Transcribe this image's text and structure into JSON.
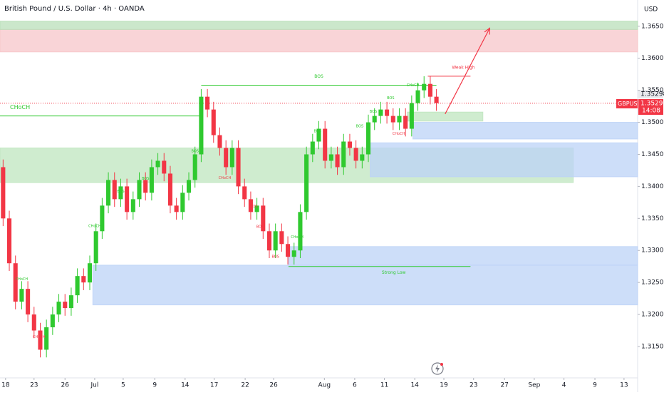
{
  "header": {
    "title": "British Pound / U.S. Dollar · 4h · OANDA",
    "currency": "USD"
  },
  "price_tags": {
    "last": "1.35298",
    "symbol": "GBPUSD",
    "current": "1.35298",
    "countdown": "14:08"
  },
  "chart_data": {
    "type": "candlestick",
    "up_color": "#2fc92f",
    "down_color": "#f23645",
    "grid": false,
    "xlim": [
      -0.5,
      102.5
    ],
    "ylim": [
      1.3101,
      1.3691
    ],
    "open": [
      1.343,
      1.335,
      1.328,
      1.322,
      1.324,
      1.32,
      1.3175,
      1.3145,
      1.318,
      1.32,
      1.322,
      1.321,
      1.323,
      1.326,
      1.325,
      1.328,
      1.333,
      1.337,
      1.341,
      1.338,
      1.34,
      1.336,
      1.338,
      1.341,
      1.339,
      1.343,
      1.344,
      1.342,
      1.337,
      1.336,
      1.339,
      1.341,
      1.345,
      1.354,
      1.352,
      1.348,
      1.346,
      1.343,
      1.346,
      1.34,
      1.338,
      1.336,
      1.337,
      1.333,
      1.33,
      1.333,
      1.331,
      1.329,
      1.33,
      1.336,
      1.345,
      1.347,
      1.349,
      1.344,
      1.345,
      1.343,
      1.347,
      1.346,
      1.344,
      1.345,
      1.35,
      1.351,
      1.352,
      1.351,
      1.35,
      1.351,
      1.349,
      1.353,
      1.355,
      1.356,
      1.354
    ],
    "high": [
      1.3442,
      1.3362,
      1.3292,
      1.3252,
      1.3252,
      1.3212,
      1.3187,
      1.3192,
      1.3212,
      1.3232,
      1.3232,
      1.3242,
      1.3272,
      1.3272,
      1.3292,
      1.3342,
      1.3382,
      1.3422,
      1.3422,
      1.3412,
      1.3412,
      1.3392,
      1.3422,
      1.3422,
      1.3442,
      1.3452,
      1.3452,
      1.3432,
      1.3382,
      1.3402,
      1.3422,
      1.3462,
      1.3552,
      1.3552,
      1.3532,
      1.3492,
      1.3472,
      1.3472,
      1.3472,
      1.3412,
      1.3392,
      1.3382,
      1.3382,
      1.3342,
      1.3342,
      1.3342,
      1.3322,
      1.3312,
      1.3372,
      1.3462,
      1.3482,
      1.3502,
      1.3502,
      1.3462,
      1.3462,
      1.3482,
      1.3482,
      1.3472,
      1.3462,
      1.3512,
      1.3522,
      1.3532,
      1.3532,
      1.3522,
      1.3522,
      1.3522,
      1.3542,
      1.3562,
      1.3572,
      1.3572,
      1.3552
    ],
    "low": [
      1.3338,
      1.3268,
      1.3208,
      1.3208,
      1.3188,
      1.3163,
      1.3133,
      1.3133,
      1.3168,
      1.3188,
      1.3198,
      1.3198,
      1.3218,
      1.3238,
      1.3238,
      1.3268,
      1.3318,
      1.3358,
      1.3368,
      1.3368,
      1.3348,
      1.3348,
      1.3368,
      1.3378,
      1.3378,
      1.3418,
      1.3408,
      1.3358,
      1.3348,
      1.3348,
      1.3378,
      1.3398,
      1.3438,
      1.3508,
      1.3468,
      1.3448,
      1.3418,
      1.3418,
      1.3388,
      1.3368,
      1.3348,
      1.3348,
      1.3318,
      1.3288,
      1.3288,
      1.3298,
      1.3278,
      1.3278,
      1.3288,
      1.3348,
      1.3438,
      1.3458,
      1.3428,
      1.3428,
      1.3418,
      1.3418,
      1.3448,
      1.3428,
      1.3428,
      1.3438,
      1.3488,
      1.3498,
      1.3498,
      1.3488,
      1.3488,
      1.3478,
      1.3478,
      1.3518,
      1.3538,
      1.3528,
      1.3518
    ],
    "close": [
      1.335,
      1.328,
      1.322,
      1.324,
      1.32,
      1.3175,
      1.3145,
      1.318,
      1.32,
      1.322,
      1.321,
      1.323,
      1.326,
      1.325,
      1.328,
      1.333,
      1.337,
      1.341,
      1.338,
      1.34,
      1.336,
      1.338,
      1.341,
      1.339,
      1.343,
      1.344,
      1.342,
      1.337,
      1.336,
      1.339,
      1.341,
      1.345,
      1.354,
      1.352,
      1.348,
      1.346,
      1.343,
      1.346,
      1.34,
      1.338,
      1.336,
      1.337,
      1.333,
      1.33,
      1.333,
      1.331,
      1.329,
      1.33,
      1.336,
      1.345,
      1.347,
      1.349,
      1.344,
      1.345,
      1.343,
      1.347,
      1.346,
      1.344,
      1.345,
      1.35,
      1.351,
      1.352,
      1.351,
      1.35,
      1.351,
      1.349,
      1.353,
      1.355,
      1.356,
      1.354,
      1.353
    ],
    "yticks": [
      {
        "value": 1.315,
        "label": "1.31500"
      },
      {
        "value": 1.32,
        "label": "1.32000"
      },
      {
        "value": 1.325,
        "label": "1.32500"
      },
      {
        "value": 1.33,
        "label": "1.33000"
      },
      {
        "value": 1.335,
        "label": "1.33500"
      },
      {
        "value": 1.34,
        "label": "1.34000"
      },
      {
        "value": 1.345,
        "label": "1.34500"
      },
      {
        "value": 1.35,
        "label": "1.35000"
      },
      {
        "value": 1.355,
        "label": "1.35500"
      },
      {
        "value": 1.36,
        "label": "1.36000"
      },
      {
        "value": 1.365,
        "label": "1.36500"
      }
    ],
    "xticks": [
      {
        "value": 0.4,
        "label": "18"
      },
      {
        "value": 5,
        "label": "23"
      },
      {
        "value": 10,
        "label": "26"
      },
      {
        "value": 14.8,
        "label": "Jul"
      },
      {
        "value": 19.4,
        "label": "5"
      },
      {
        "value": 24.5,
        "label": "9"
      },
      {
        "value": 29.4,
        "label": "14"
      },
      {
        "value": 34.1,
        "label": "17"
      },
      {
        "value": 39.1,
        "label": "22"
      },
      {
        "value": 43.7,
        "label": "26"
      },
      {
        "value": 51.9,
        "label": "Aug"
      },
      {
        "value": 56.8,
        "label": "6"
      },
      {
        "value": 61.6,
        "label": "11"
      },
      {
        "value": 66.5,
        "label": "14"
      },
      {
        "value": 71.2,
        "label": "19"
      },
      {
        "value": 76,
        "label": "23"
      },
      {
        "value": 81,
        "label": "27"
      },
      {
        "value": 85.8,
        "label": "Sep"
      },
      {
        "value": 90.6,
        "label": "4"
      },
      {
        "value": 95.6,
        "label": "9"
      },
      {
        "value": 100.3,
        "label": "13"
      }
    ],
    "zones": [
      {
        "x": [
          -0.5,
          102.5
        ],
        "y": [
          1.361,
          1.3645
        ],
        "color": "#f7c5c9"
      },
      {
        "x": [
          -0.5,
          102.5
        ],
        "y": [
          1.3645,
          1.3658
        ],
        "color": "#b9dfb9"
      },
      {
        "x": [
          -0.5,
          92.1
        ],
        "y": [
          1.3406,
          1.346
        ],
        "color": "#bfe5bf"
      },
      {
        "x": [
          59.3,
          102.5
        ],
        "y": [
          1.3415,
          1.3468
        ],
        "color": "#bcd3f7"
      },
      {
        "x": [
          66.2,
          102.5
        ],
        "y": [
          1.3474,
          1.35
        ],
        "color": "#bcd3f7"
      },
      {
        "x": [
          65.3,
          77.5
        ],
        "y": [
          1.3502,
          1.3516
        ],
        "color": "#bfe5bf"
      },
      {
        "x": [
          46.1,
          102.5
        ],
        "y": [
          1.3277,
          1.3306
        ],
        "color": "#bcd3f7"
      },
      {
        "x": [
          14.5,
          102.5
        ],
        "y": [
          1.3215,
          1.3277
        ],
        "color": "#bcd3f7"
      }
    ],
    "levels": [
      {
        "x": [
          32,
          70
        ],
        "y": 1.3558,
        "color": "#2fc92f",
        "label": "BOS"
      },
      {
        "x": [
          -0.5,
          32
        ],
        "y": 1.351,
        "color": "#2fc92f",
        "label": "CHoCH"
      },
      {
        "x": [
          68.6,
          75.5
        ],
        "y": 1.3572,
        "color": "#f23645",
        "label": "Weak High"
      },
      {
        "x": [
          46.1,
          75.5
        ],
        "y": 1.3275,
        "color": "#2fc92f",
        "label": "Strong Low"
      }
    ],
    "annotations": [
      {
        "text": "BOS",
        "x": 19,
        "y": 1.3392,
        "color": "#2fc92f"
      },
      {
        "text": "BOS",
        "x": 23,
        "y": 1.3412,
        "color": "#2fc92f"
      },
      {
        "text": "BOS",
        "x": 31,
        "y": 1.3455,
        "color": "#2fc92f"
      },
      {
        "text": "CHoCH",
        "x": 14.8,
        "y": 1.3338,
        "color": "#2fc92f"
      },
      {
        "text": "CHoCH",
        "x": 3,
        "y": 1.3255,
        "color": "#2fc92f"
      },
      {
        "text": "CHoCH",
        "x": 5.8,
        "y": 1.3165,
        "color": "#f23645"
      },
      {
        "text": "CHoCH",
        "x": 35.8,
        "y": 1.3413,
        "color": "#f23645"
      },
      {
        "text": "BOS",
        "x": 40.5,
        "y": 1.3369,
        "color": "#f23645"
      },
      {
        "text": "BOS",
        "x": 41.5,
        "y": 1.3337,
        "color": "#f23645"
      },
      {
        "text": "BOS",
        "x": 44,
        "y": 1.329,
        "color": "#f23645"
      },
      {
        "text": "CHoCH",
        "x": 47.5,
        "y": 1.3321,
        "color": "#2fc92f"
      },
      {
        "text": "BOS",
        "x": 50.8,
        "y": 1.3486,
        "color": "#2fc92f"
      },
      {
        "text": "BOS",
        "x": 57.6,
        "y": 1.3494,
        "color": "#2fc92f"
      },
      {
        "text": "BOS",
        "x": 59.8,
        "y": 1.3517,
        "color": "#2fc92f"
      },
      {
        "text": "BOS",
        "x": 62.6,
        "y": 1.3538,
        "color": "#2fc92f"
      },
      {
        "text": "CHoCH",
        "x": 63.9,
        "y": 1.3482,
        "color": "#f23645"
      },
      {
        "text": "CHoCH",
        "x": 66.2,
        "y": 1.3558,
        "color": "#2fc92f"
      }
    ],
    "arrow": {
      "x": [
        71.4,
        78.6
      ],
      "y": [
        1.3513,
        1.3647
      ],
      "color": "#f23645"
    },
    "last_price": 1.35298
  }
}
